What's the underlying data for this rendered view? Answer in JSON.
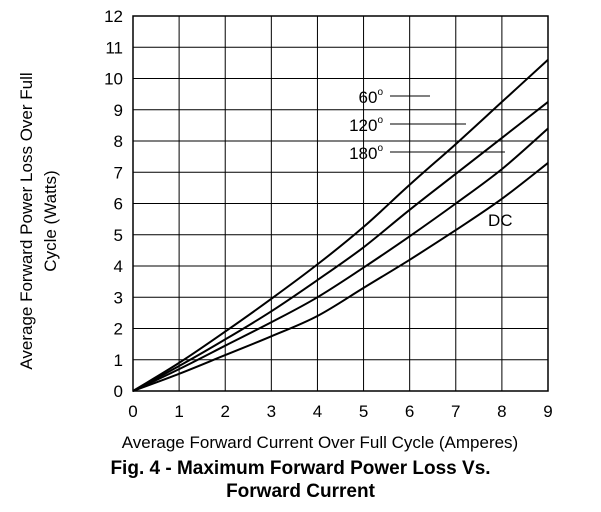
{
  "chart_data": {
    "type": "line",
    "xlabel": "Average Forward Current Over Full Cycle (Amperes)",
    "ylabel_lines": [
      "Average Forward Power Loss Over Full",
      "Cycle (Watts)"
    ],
    "xlim": [
      0,
      9
    ],
    "ylim": [
      0,
      12
    ],
    "x_ticks": [
      "0",
      "1",
      "2",
      "3",
      "4",
      "5",
      "6",
      "7",
      "8",
      "9"
    ],
    "y_ticks": [
      "0",
      "1",
      "2",
      "3",
      "4",
      "5",
      "6",
      "7",
      "8",
      "9",
      "10",
      "11",
      "12"
    ],
    "grid": true,
    "series": [
      {
        "name": "60",
        "label_degree": "o",
        "x": [
          0,
          1,
          2,
          3,
          4,
          5,
          6,
          7,
          8,
          9
        ],
        "y": [
          0,
          0.9,
          1.9,
          2.95,
          4.05,
          5.25,
          6.6,
          7.9,
          9.25,
          10.6
        ]
      },
      {
        "name": "120",
        "label_degree": "o",
        "x": [
          0,
          1,
          2,
          3,
          4,
          5,
          6,
          7,
          8,
          9
        ],
        "y": [
          0,
          0.8,
          1.65,
          2.55,
          3.55,
          4.6,
          5.8,
          6.95,
          8.1,
          9.25
        ]
      },
      {
        "name": "180",
        "label_degree": "o",
        "x": [
          0,
          1,
          2,
          3,
          4,
          5,
          6,
          7,
          8,
          9
        ],
        "y": [
          0,
          0.7,
          1.45,
          2.2,
          3.0,
          3.95,
          4.95,
          6.0,
          7.1,
          8.4
        ]
      },
      {
        "name": "DC",
        "label_degree": "",
        "x": [
          0,
          1,
          2,
          3,
          4,
          5,
          6,
          7,
          8,
          9
        ],
        "y": [
          0,
          0.55,
          1.15,
          1.75,
          2.4,
          3.3,
          4.2,
          5.15,
          6.15,
          7.3
        ]
      }
    ]
  },
  "caption": {
    "line1": "Fig. 4 - Maximum Forward Power Loss Vs.",
    "line2": "Forward Current"
  }
}
